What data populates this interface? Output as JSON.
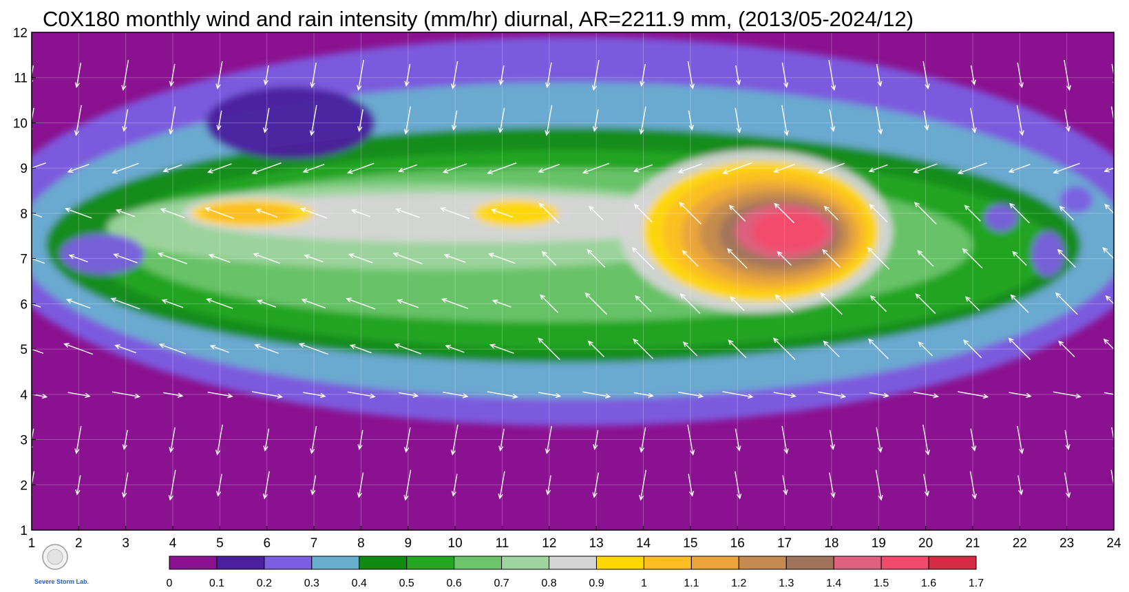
{
  "chart_data": {
    "type": "heatmap",
    "title": "C0X180 monthly wind and rain intensity (mm/hr) diurnal, AR=2211.9 mm, (2013/05-2024/12)",
    "x_ticks": [
      "1",
      "2",
      "3",
      "4",
      "5",
      "6",
      "7",
      "8",
      "9",
      "10",
      "11",
      "12",
      "13",
      "14",
      "15",
      "16",
      "17",
      "18",
      "19",
      "20",
      "21",
      "22",
      "23",
      "24"
    ],
    "y_ticks": [
      "1",
      "2",
      "3",
      "4",
      "5",
      "6",
      "7",
      "8",
      "9",
      "10",
      "11",
      "12"
    ],
    "xlim": [
      1,
      24
    ],
    "ylim": [
      1,
      12
    ],
    "grid": true,
    "colorbar": {
      "levels": [
        "0",
        "0.1",
        "0.2",
        "0.3",
        "0.4",
        "0.5",
        "0.6",
        "0.7",
        "0.8",
        "0.9",
        "1",
        "1.1",
        "1.2",
        "1.3",
        "1.4",
        "1.5",
        "1.6",
        "1.7"
      ],
      "colors": [
        "#8a118f",
        "#4b1f9e",
        "#7b5ee1",
        "#6aaed0",
        "#118a11",
        "#24a524",
        "#6cc46c",
        "#9fd49f",
        "#d5d5d5",
        "#ffd700",
        "#fbbf25",
        "#e9a43c",
        "#c48a4f",
        "#a0735b",
        "#e06080",
        "#f24a6c",
        "#d42c45"
      ]
    },
    "overlay_logo": {
      "text": "Severe Storm Lab."
    }
  }
}
